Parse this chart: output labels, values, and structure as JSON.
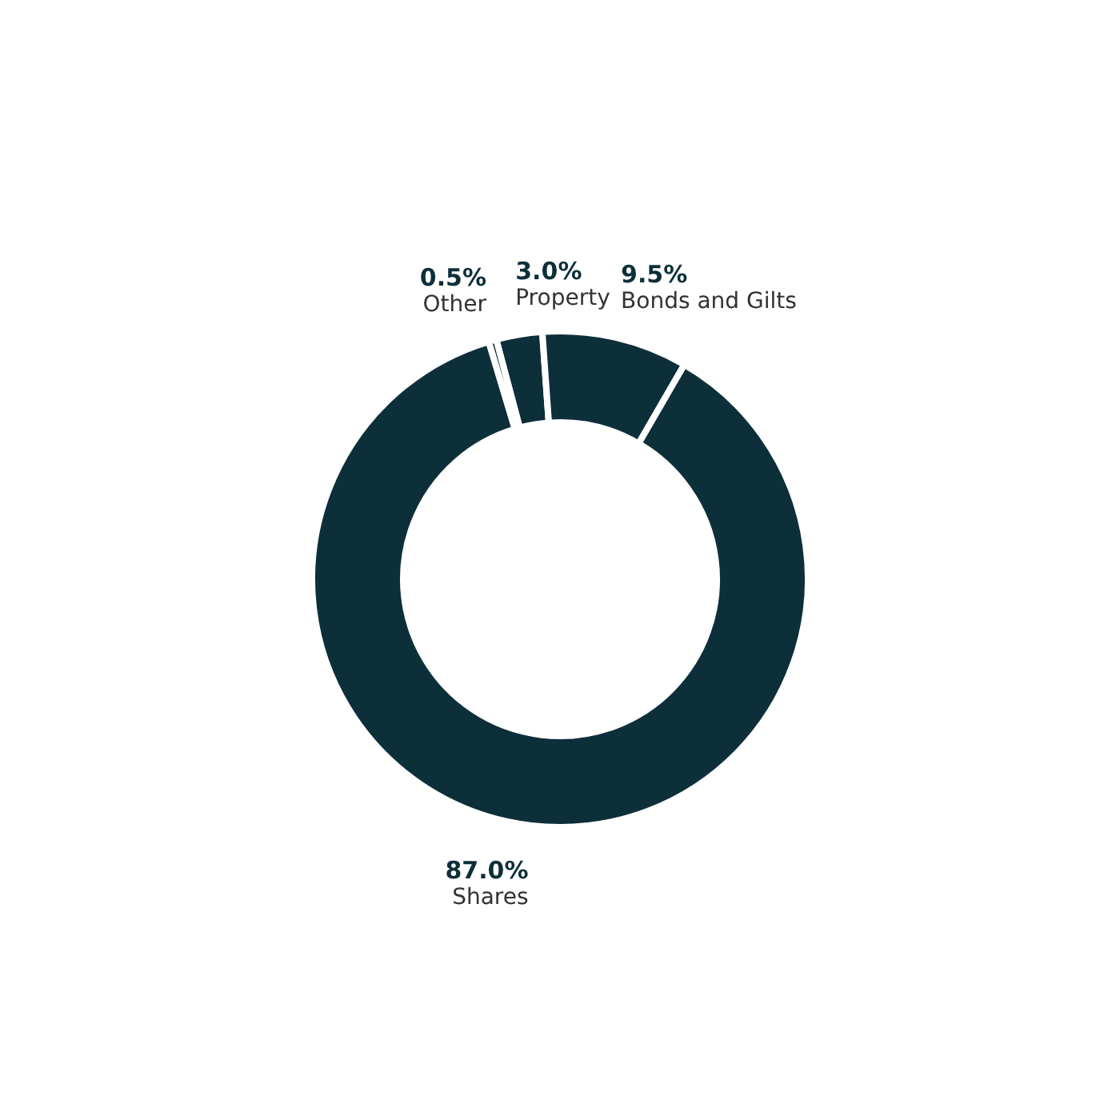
{
  "chart_data": {
    "type": "donut",
    "categories": [
      "Property",
      "Bonds and Gilts",
      "Shares",
      "Other"
    ],
    "values": [
      3.0,
      9.5,
      87.0,
      0.5
    ],
    "colors": [
      "#0d2f3a",
      "#0d2f3a",
      "#0d2f3a",
      "#0d2f3a"
    ],
    "value_labels": [
      "3.0%",
      "9.5%",
      "87.0%",
      "0.5%"
    ]
  }
}
